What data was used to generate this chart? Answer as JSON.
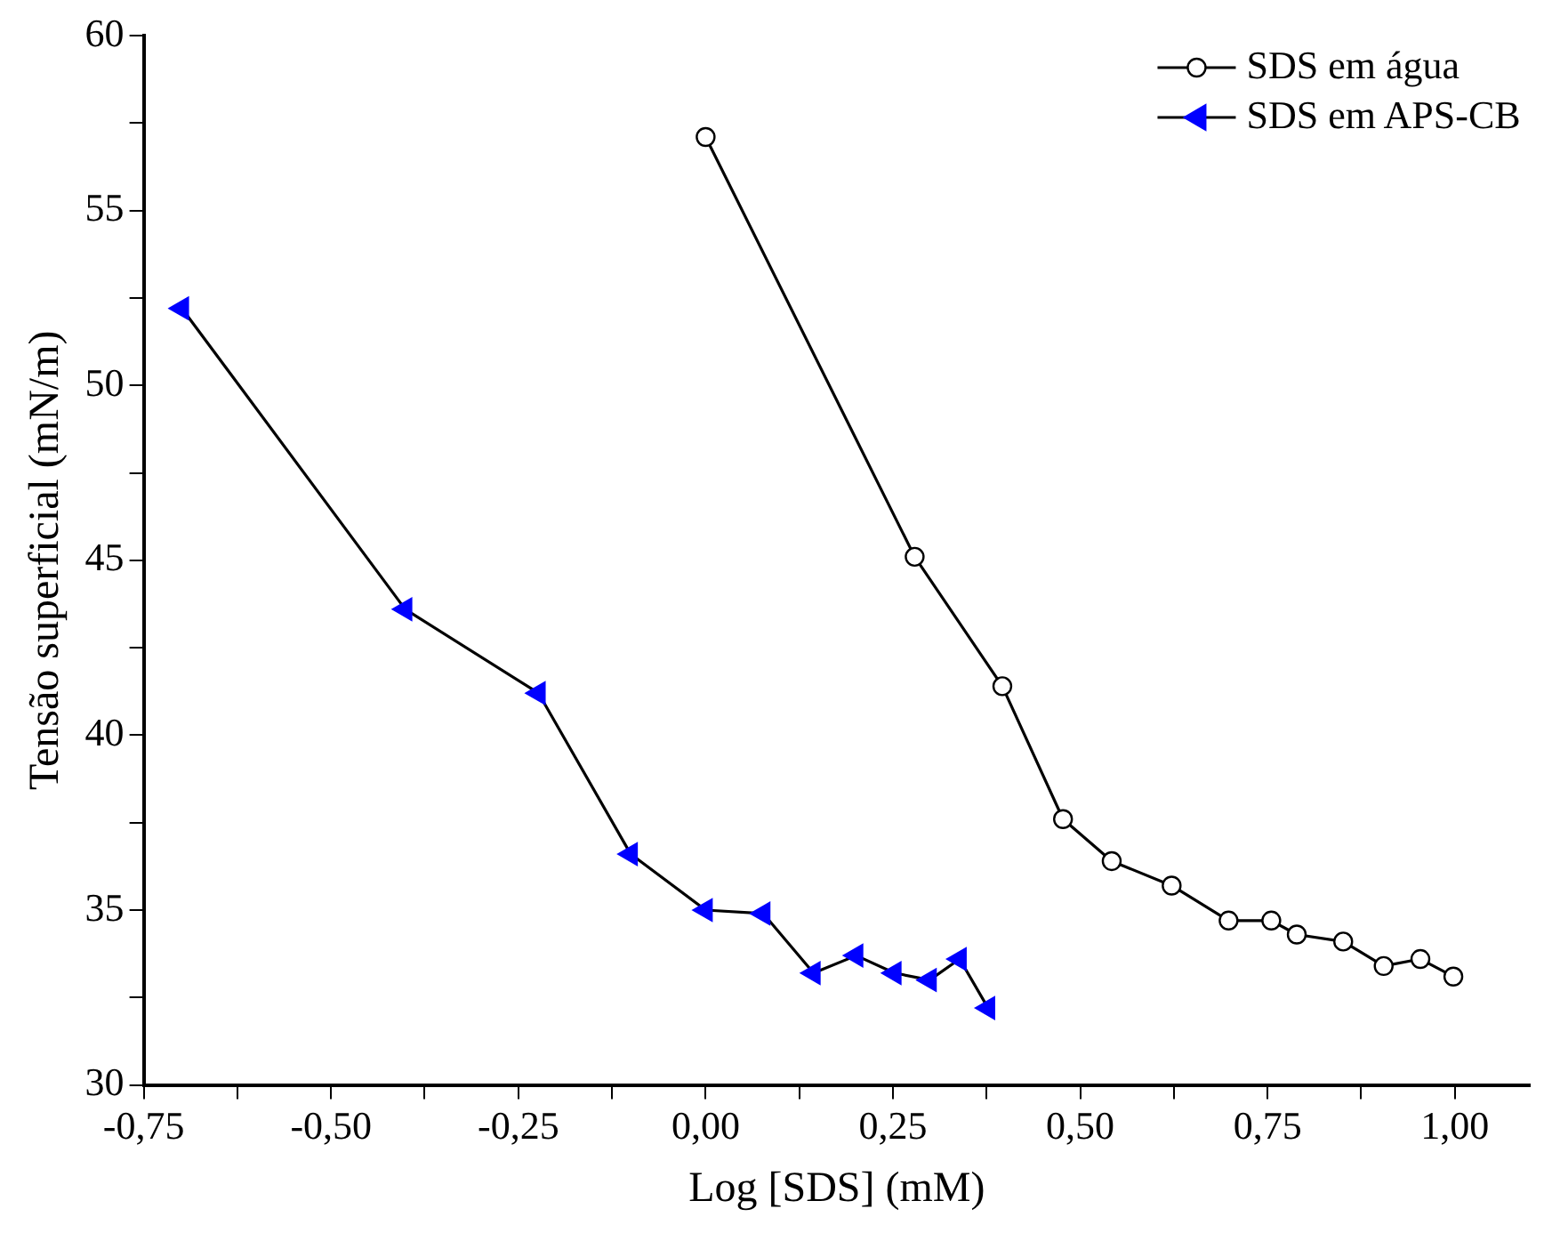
{
  "chart_data": {
    "type": "line",
    "xlabel": "Log [SDS] (mM)",
    "ylabel": "Tensão superficial (mN/m)",
    "xlim": [
      -0.75,
      1.1
    ],
    "xticks": [
      {
        "value": -0.75,
        "label": "-0,75"
      },
      {
        "value": -0.625,
        "label": null
      },
      {
        "value": -0.5,
        "label": "-0,50"
      },
      {
        "value": -0.375,
        "label": null
      },
      {
        "value": -0.25,
        "label": "-0,25"
      },
      {
        "value": -0.125,
        "label": null
      },
      {
        "value": 0,
        "label": "0,00"
      },
      {
        "value": 0.125,
        "label": null
      },
      {
        "value": 0.25,
        "label": "0,25"
      },
      {
        "value": 0.375,
        "label": null
      },
      {
        "value": 0.5,
        "label": "0,50"
      },
      {
        "value": 0.625,
        "label": null
      },
      {
        "value": 0.75,
        "label": "0,75"
      },
      {
        "value": 0.875,
        "label": null
      },
      {
        "value": 1,
        "label": "1,00"
      }
    ],
    "ylim": [
      30,
      60
    ],
    "yticks": [
      30,
      {
        "value": 32.5,
        "label": null
      },
      35,
      {
        "value": 37.5,
        "label": null
      },
      40,
      {
        "value": 42.5,
        "label": null
      },
      45,
      {
        "value": 47.5,
        "label": null
      },
      50,
      {
        "value": 52.5,
        "label": null
      },
      55,
      {
        "value": 57.5,
        "label": null
      },
      60
    ],
    "grid": false,
    "legend": "top right",
    "line_style": "solid",
    "series": [
      {
        "name": "SDS em água",
        "color": "#000000",
        "marker": "circle",
        "x": [
          0,
          0.279,
          0.396,
          0.477,
          0.542,
          0.622,
          0.698,
          0.755,
          0.789,
          0.851,
          0.905,
          0.954,
          0.998
        ],
        "values": [
          57.1,
          45.1,
          41.4,
          37.6,
          36.4,
          35.7,
          34.7,
          34.7,
          34.3,
          34.1,
          33.4,
          33.6,
          33.1
        ]
      },
      {
        "name": "SDS em APS-CB",
        "color": "#0000ff",
        "marker": "triangle",
        "x": [
          -0.699,
          -0.401,
          -0.223,
          -0.1,
          0,
          0.077,
          0.144,
          0.201,
          0.252,
          0.299,
          0.339,
          0.377
        ],
        "values": [
          52.2,
          43.6,
          41.2,
          36.6,
          35,
          34.9,
          33.2,
          33.7,
          33.2,
          33,
          33.6,
          32.2
        ]
      }
    ]
  }
}
